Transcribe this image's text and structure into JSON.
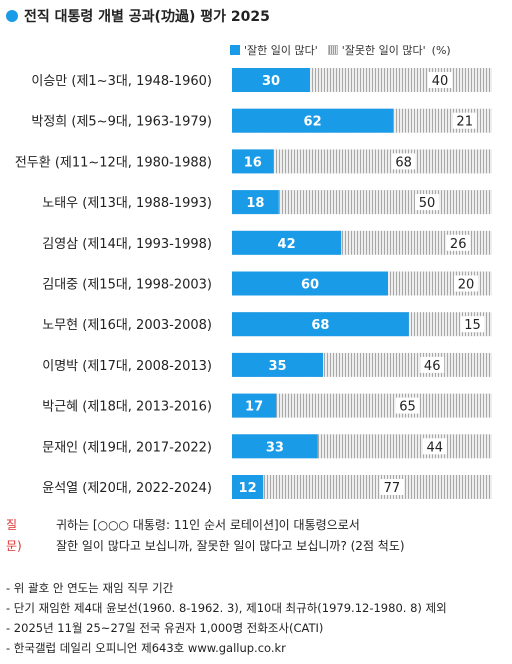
{
  "title": "전직 대통령 개별 공과(功過) 평가 2025",
  "legend": {
    "good": "'잘한 일이 많다'",
    "bad": "'잘못한 일이 많다'",
    "unit": "(%)"
  },
  "colors": {
    "good": "#1a9be8",
    "bad_bg": "#eeeeee",
    "bad_line": "#a8a8a8"
  },
  "chart_data": {
    "type": "bar",
    "orientation": "horizontal",
    "stacked": true,
    "categories": [
      "이승만 (제1~3대, 1948-1960)",
      "박정희 (제5~9대, 1963-1979)",
      "전두환 (제11~12대, 1980-1988)",
      "노태우 (제13대, 1988-1993)",
      "김영삼 (제14대, 1993-1998)",
      "김대중 (제15대, 1998-2003)",
      "노무현 (제16대, 2003-2008)",
      "이명박 (제17대, 2008-2013)",
      "박근혜 (제18대, 2013-2016)",
      "문재인 (제19대, 2017-2022)",
      "윤석열 (제20대, 2022-2024)"
    ],
    "series": [
      {
        "name": "'잘한 일이 많다'",
        "values": [
          30,
          62,
          16,
          18,
          42,
          60,
          68,
          35,
          17,
          33,
          12
        ]
      },
      {
        "name": "'잘못한 일이 많다'",
        "values": [
          40,
          21,
          68,
          50,
          26,
          20,
          15,
          46,
          65,
          44,
          77
        ]
      }
    ],
    "xlim": [
      0,
      100
    ],
    "legend_position": "top-right"
  },
  "question": {
    "label": "질문)",
    "line1": "귀하는 [○○○ 대통령: 11인 순서 로테이션]이 대통령으로서",
    "line2": "잘한 일이 많다고 보십니까, 잘못한 일이 많다고 보십니까? (2점 척도)"
  },
  "notes": [
    "- 위 괄호 안 연도는 재임 직무 기간",
    "- 단기 재임한 제4대 윤보선(1960. 8-1962. 3), 제10대 최규하(1979.12-1980. 8) 제외",
    "- 2025년 11월 25~27일 전국 유권자 1,000명 전화조사(CATI)",
    "- 한국갤럽 데일리 오피니언 제643호 www.gallup.co.kr"
  ]
}
